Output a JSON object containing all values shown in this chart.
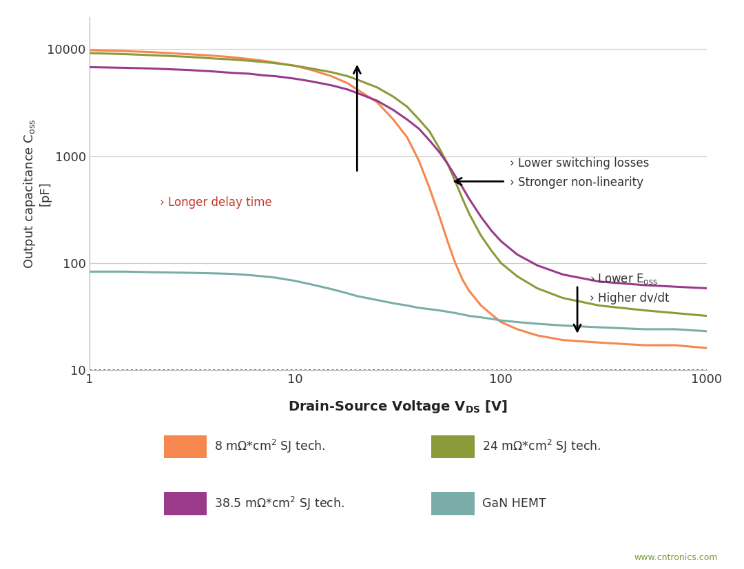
{
  "background_color": "#ffffff",
  "grid_color": "#cccccc",
  "xlim": [
    1,
    1000
  ],
  "ylim": [
    10,
    20000
  ],
  "colors": {
    "orange": "#F5874F",
    "olive": "#8B9B3A",
    "purple": "#9B3A8B",
    "teal": "#7AADA8"
  },
  "legend_items": [
    {
      "label": "8 mΩ*cm² SJ tech.",
      "color": "#F5874F"
    },
    {
      "label": "24 mΩ*cm² SJ tech.",
      "color": "#8B9B3A"
    },
    {
      "label": "38.5 mΩ*cm² SJ tech.",
      "color": "#9B3A8B"
    },
    {
      "label": "GaN HEMT",
      "color": "#7AADA8"
    }
  ],
  "curve_8mohm": {
    "x": [
      1,
      1.5,
      2,
      3,
      4,
      5,
      6,
      7,
      8,
      10,
      12,
      15,
      18,
      20,
      25,
      30,
      35,
      40,
      45,
      50,
      55,
      60,
      65,
      70,
      80,
      90,
      100,
      120,
      150,
      200,
      300,
      500,
      700,
      1000
    ],
    "y": [
      9800,
      9600,
      9400,
      9000,
      8700,
      8400,
      8100,
      7800,
      7500,
      7000,
      6400,
      5600,
      4800,
      4200,
      3200,
      2200,
      1500,
      900,
      500,
      280,
      160,
      100,
      70,
      55,
      40,
      33,
      28,
      24,
      21,
      19,
      18,
      17,
      17,
      16
    ]
  },
  "curve_24mohm": {
    "x": [
      1,
      1.5,
      2,
      3,
      4,
      5,
      6,
      7,
      8,
      10,
      12,
      15,
      18,
      20,
      25,
      30,
      35,
      40,
      45,
      50,
      55,
      60,
      65,
      70,
      80,
      90,
      100,
      120,
      150,
      200,
      300,
      500,
      700,
      1000
    ],
    "y": [
      9200,
      9000,
      8800,
      8500,
      8200,
      8000,
      7800,
      7600,
      7400,
      7000,
      6600,
      6100,
      5600,
      5200,
      4400,
      3600,
      2900,
      2200,
      1700,
      1200,
      850,
      580,
      400,
      290,
      180,
      130,
      100,
      75,
      58,
      47,
      40,
      36,
      34,
      32
    ]
  },
  "curve_385mohm": {
    "x": [
      1,
      1.5,
      2,
      3,
      4,
      5,
      6,
      7,
      8,
      10,
      12,
      15,
      18,
      20,
      25,
      30,
      35,
      40,
      45,
      50,
      55,
      60,
      65,
      70,
      80,
      90,
      100,
      120,
      150,
      200,
      300,
      500,
      700,
      1000
    ],
    "y": [
      6800,
      6700,
      6600,
      6400,
      6200,
      6000,
      5900,
      5700,
      5600,
      5300,
      5000,
      4600,
      4200,
      3900,
      3300,
      2700,
      2200,
      1800,
      1400,
      1100,
      850,
      650,
      510,
      400,
      270,
      200,
      160,
      120,
      95,
      78,
      67,
      62,
      60,
      58
    ]
  },
  "curve_gan": {
    "x": [
      1,
      1.5,
      2,
      3,
      4,
      5,
      6,
      7,
      8,
      10,
      12,
      15,
      18,
      20,
      25,
      30,
      35,
      40,
      45,
      50,
      55,
      60,
      65,
      70,
      80,
      90,
      100,
      120,
      150,
      200,
      300,
      500,
      700,
      1000
    ],
    "y": [
      83,
      83,
      82,
      81,
      80,
      79,
      77,
      75,
      73,
      68,
      63,
      57,
      52,
      49,
      45,
      42,
      40,
      38,
      37,
      36,
      35,
      34,
      33,
      32,
      31,
      30,
      29,
      28,
      27,
      26,
      25,
      24,
      24,
      23
    ]
  },
  "dotted_line_y": 10
}
